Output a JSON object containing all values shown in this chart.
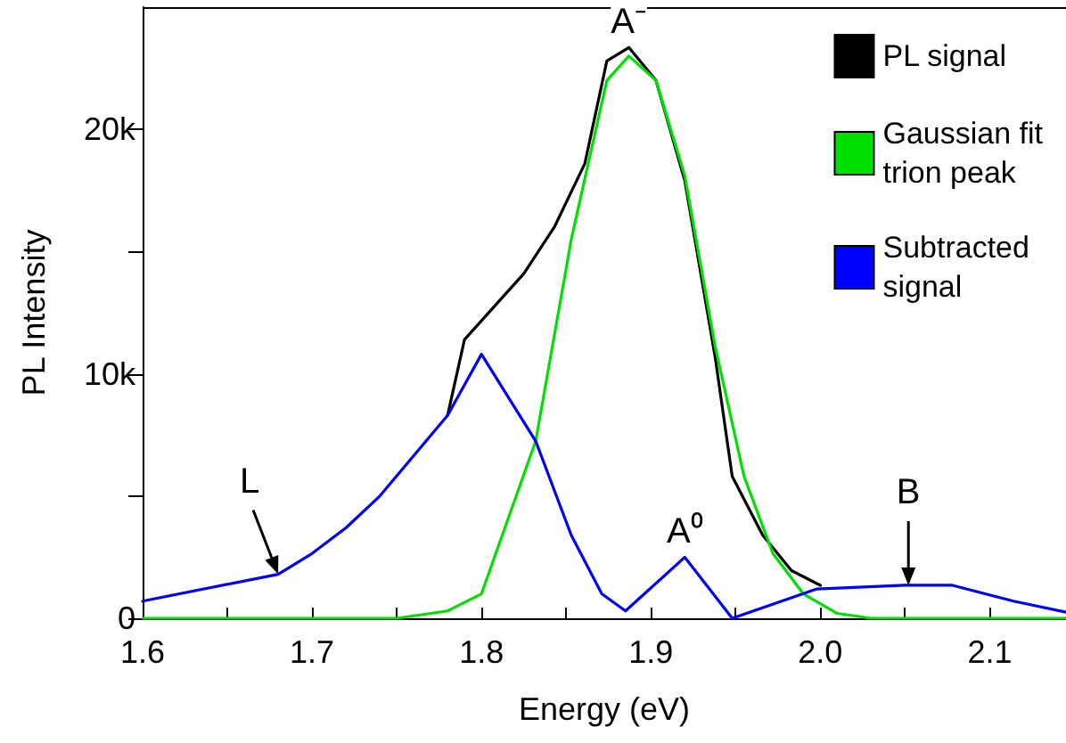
{
  "chart_data": {
    "type": "line",
    "xlabel": "Energy (eV)",
    "ylabel": "PL Intensity",
    "xlim": [
      1.6,
      2.145
    ],
    "ylim": [
      0,
      25000
    ],
    "xticks": [
      1.6,
      {
        "value": 1.65,
        "label": null
      },
      1.7,
      {
        "value": 1.75,
        "label": null
      },
      1.8,
      {
        "value": 1.85,
        "label": null
      },
      1.9,
      {
        "value": 1.95,
        "label": null
      },
      "2.0",
      {
        "value": 2.05,
        "label": null
      },
      2.1
    ],
    "yticks": [
      0,
      {
        "value": 5000,
        "label": null
      },
      {
        "value": 10000,
        "label": "10k"
      },
      {
        "value": 15000,
        "label": null
      },
      {
        "value": 20000,
        "label": "20k"
      }
    ],
    "legend": "top right",
    "grid": false,
    "marker": "none",
    "series": [
      {
        "name": "PL signal",
        "color": "#000000",
        "x": [
          1.78,
          1.79,
          1.825,
          1.843,
          1.861,
          1.874,
          1.887,
          1.903,
          1.92,
          1.938,
          1.948,
          1.966,
          1.983,
          2.0
        ],
        "values": [
          8300,
          11400,
          14100,
          16000,
          18600,
          22800,
          23350,
          22000,
          17900,
          10650,
          5800,
          3400,
          1950,
          1350
        ]
      },
      {
        "name": "Gaussian fit\ntrion peak",
        "color": "#00e000",
        "x": [
          1.6,
          1.75,
          1.78,
          1.8,
          1.832,
          1.853,
          1.874,
          1.887,
          1.903,
          1.92,
          1.938,
          1.955,
          1.972,
          1.99,
          2.01,
          2.03,
          2.145
        ],
        "values": [
          0,
          0,
          300,
          1000,
          7250,
          15500,
          22000,
          23000,
          22000,
          18100,
          11100,
          5800,
          2650,
          1000,
          200,
          0,
          0
        ]
      },
      {
        "name": "Subtracted\nsignal",
        "color": "#0000ff",
        "x": [
          1.6,
          1.68,
          1.7,
          1.72,
          1.74,
          1.76,
          1.78,
          1.8,
          1.832,
          1.853,
          1.871,
          1.885,
          1.92,
          1.948,
          1.998,
          2.05,
          2.078,
          2.114,
          2.145
        ],
        "values": [
          700,
          1800,
          2650,
          3700,
          5000,
          6650,
          8300,
          10800,
          7250,
          3400,
          1000,
          300,
          2500,
          0,
          1200,
          1350,
          1350,
          700,
          250
        ]
      }
    ],
    "annotations": [
      {
        "text": "A⁻",
        "x": 1.887,
        "y": 23350
      },
      {
        "text": "A⁰",
        "x": 1.92,
        "y": 2500
      },
      {
        "text": "L",
        "x": 1.68,
        "y": 1800
      },
      {
        "text": "B",
        "x": 2.052,
        "y": 1350
      }
    ]
  }
}
